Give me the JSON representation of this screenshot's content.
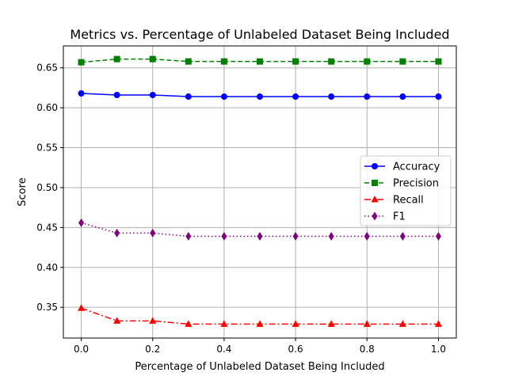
{
  "chart_data": {
    "type": "line",
    "title": "Metrics vs. Percentage of Unlabeled Dataset Being Included",
    "xlabel": "Percentage of Unlabeled Dataset Being Included",
    "ylabel": "Score",
    "x": [
      0.0,
      0.1,
      0.2,
      0.3,
      0.4,
      0.5,
      0.6,
      0.7,
      0.8,
      0.9,
      1.0
    ],
    "xlim": [
      -0.05,
      1.05
    ],
    "ylim": [
      0.3115,
      0.6775
    ],
    "xticks": [
      "0.0",
      "0.2",
      "0.4",
      "0.6",
      "0.8",
      "1.0"
    ],
    "yticks": [
      "0.35",
      "0.40",
      "0.45",
      "0.50",
      "0.55",
      "0.60",
      "0.65"
    ],
    "grid": true,
    "legend_position": "center-right",
    "series": [
      {
        "name": "Accuracy",
        "color": "#0000ff",
        "marker": "circle",
        "linestyle": "solid",
        "values": [
          0.618,
          0.616,
          0.616,
          0.614,
          0.614,
          0.614,
          0.614,
          0.614,
          0.614,
          0.614,
          0.614
        ]
      },
      {
        "name": "Precision",
        "color": "#008000",
        "marker": "square",
        "linestyle": "dashed",
        "values": [
          0.657,
          0.661,
          0.661,
          0.658,
          0.658,
          0.658,
          0.658,
          0.658,
          0.658,
          0.658,
          0.658
        ]
      },
      {
        "name": "Recall",
        "color": "#ff0000",
        "marker": "triangle",
        "linestyle": "dashdot",
        "values": [
          0.349,
          0.333,
          0.333,
          0.329,
          0.329,
          0.329,
          0.329,
          0.329,
          0.329,
          0.329,
          0.329
        ]
      },
      {
        "name": "F1",
        "color": "#800080",
        "marker": "diamond",
        "linestyle": "dotted",
        "values": [
          0.456,
          0.443,
          0.443,
          0.439,
          0.439,
          0.439,
          0.439,
          0.439,
          0.439,
          0.439,
          0.439
        ]
      }
    ]
  }
}
